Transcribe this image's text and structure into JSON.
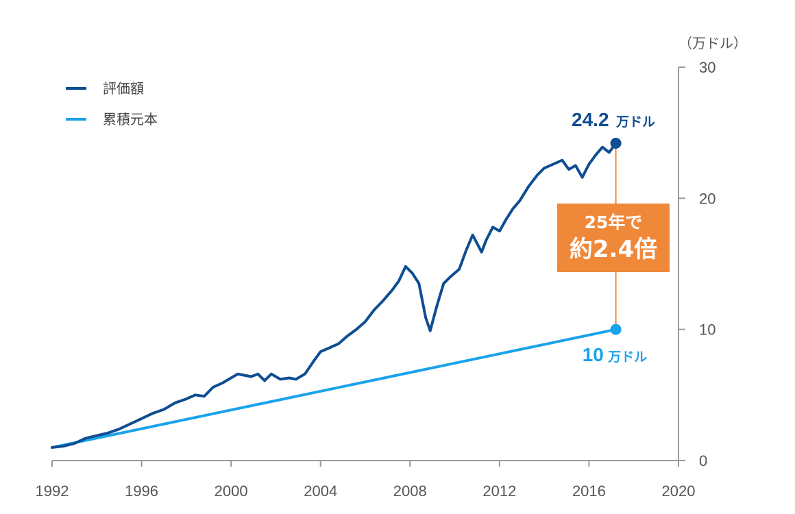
{
  "chart_data": {
    "type": "line",
    "y_unit": "（万ドル）",
    "xlim": [
      1992,
      2020
    ],
    "ylim": [
      0,
      30
    ],
    "x_ticks": [
      "1992",
      "1996",
      "2000",
      "2004",
      "2008",
      "2012",
      "2016",
      "2020"
    ],
    "y_ticks": [
      "0",
      "10",
      "20",
      "30"
    ],
    "grid": false,
    "legend_position": "top-left",
    "series": [
      {
        "name": "評価額",
        "color": "#0F4D92",
        "x": [
          1992.0,
          1992.5,
          1993.0,
          1993.5,
          1994.0,
          1994.5,
          1995.0,
          1995.5,
          1996.0,
          1996.5,
          1997.0,
          1997.5,
          1998.0,
          1998.4,
          1998.8,
          1999.2,
          1999.6,
          2000.0,
          2000.3,
          2000.6,
          2000.9,
          2001.2,
          2001.5,
          2001.8,
          2002.2,
          2002.6,
          2002.9,
          2003.3,
          2003.7,
          2004.0,
          2004.4,
          2004.8,
          2005.2,
          2005.6,
          2006.0,
          2006.4,
          2006.8,
          2007.2,
          2007.5,
          2007.8,
          2008.1,
          2008.4,
          2008.7,
          2008.9,
          2009.2,
          2009.5,
          2009.8,
          2010.2,
          2010.5,
          2010.8,
          2011.2,
          2011.4,
          2011.7,
          2012.0,
          2012.3,
          2012.6,
          2012.9,
          2013.3,
          2013.7,
          2014.0,
          2014.4,
          2014.8,
          2015.1,
          2015.4,
          2015.7,
          2016.0,
          2016.3,
          2016.6,
          2016.9,
          2017.2
        ],
        "values": [
          1.0,
          1.1,
          1.3,
          1.7,
          1.9,
          2.1,
          2.4,
          2.8,
          3.2,
          3.6,
          3.9,
          4.4,
          4.7,
          5.0,
          4.9,
          5.6,
          5.9,
          6.3,
          6.6,
          6.5,
          6.4,
          6.6,
          6.1,
          6.6,
          6.2,
          6.3,
          6.2,
          6.6,
          7.6,
          8.3,
          8.6,
          8.9,
          9.5,
          10.0,
          10.6,
          11.5,
          12.2,
          13.0,
          13.7,
          14.8,
          14.3,
          13.5,
          10.9,
          9.9,
          11.8,
          13.5,
          14.0,
          14.6,
          16.0,
          17.2,
          15.9,
          16.8,
          17.8,
          17.5,
          18.4,
          19.2,
          19.8,
          20.9,
          21.8,
          22.3,
          22.6,
          22.9,
          22.2,
          22.5,
          21.6,
          22.6,
          23.3,
          23.9,
          23.5,
          24.2
        ]
      },
      {
        "name": "累積元本",
        "color": "#1AA3EC",
        "x": [
          1992.0,
          2017.2
        ],
        "values": [
          1.0,
          10.0
        ]
      }
    ],
    "end_labels": [
      {
        "number": "24.2",
        "unit": "万ドル",
        "color": "#0F4D92"
      },
      {
        "number": "10",
        "unit": "万ドル",
        "color": "#1AA3EC"
      }
    ],
    "annotation": {
      "line1": "25年で",
      "line2": "約2.4倍",
      "color": "#F0883A"
    }
  }
}
